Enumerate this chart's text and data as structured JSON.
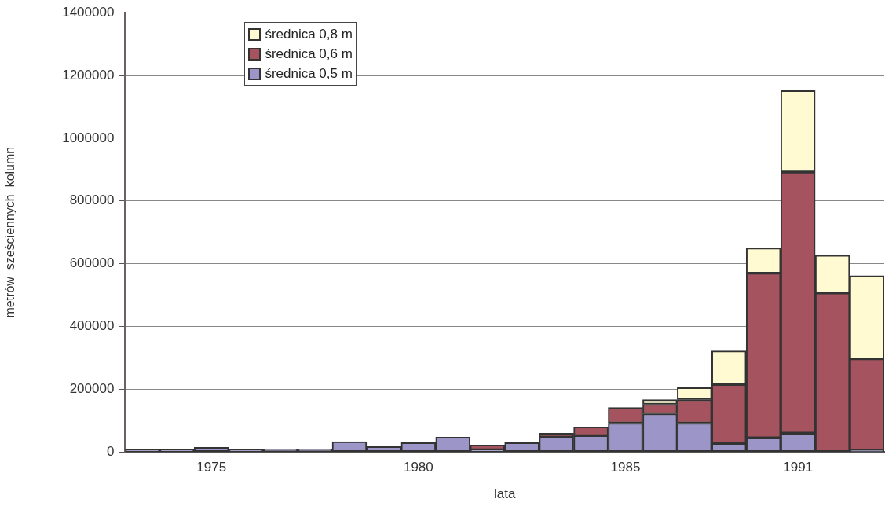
{
  "chart_data": {
    "type": "bar",
    "stacked": true,
    "xlabel": "lata",
    "ylabel": "metrów  sześciennych  kolumn",
    "categories": [
      null,
      null,
      "1975",
      null,
      null,
      null,
      null,
      null,
      "1980",
      null,
      null,
      null,
      null,
      null,
      "1985",
      null,
      null,
      null,
      null,
      "1991",
      null,
      null
    ],
    "series": [
      {
        "name": "średnica 0,5 m",
        "color": "#9c95c8",
        "values": [
          7000,
          7000,
          15000,
          8000,
          10000,
          10000,
          33000,
          17000,
          30000,
          47000,
          7000,
          30000,
          47000,
          52000,
          92000,
          122000,
          92000,
          27000,
          45000,
          60000,
          0,
          5000
        ]
      },
      {
        "name": "średnica 0,6 m",
        "color": "#a5545f",
        "values": [
          0,
          0,
          0,
          0,
          0,
          0,
          0,
          0,
          0,
          0,
          15000,
          0,
          13000,
          28000,
          50000,
          30000,
          75000,
          188000,
          525000,
          832000,
          507000,
          292000
        ]
      },
      {
        "name": "średnica 0,8 m",
        "color": "#fffad2",
        "values": [
          0,
          0,
          0,
          0,
          0,
          0,
          0,
          0,
          0,
          0,
          0,
          0,
          0,
          0,
          0,
          15000,
          38000,
          107000,
          80000,
          260000,
          120000,
          265000
        ]
      }
    ],
    "ylim": [
      0,
      1400000
    ],
    "yticks": [
      0,
      200000,
      400000,
      600000,
      800000,
      1000000,
      1200000,
      1400000
    ],
    "grid": "y",
    "legend": "top left"
  }
}
